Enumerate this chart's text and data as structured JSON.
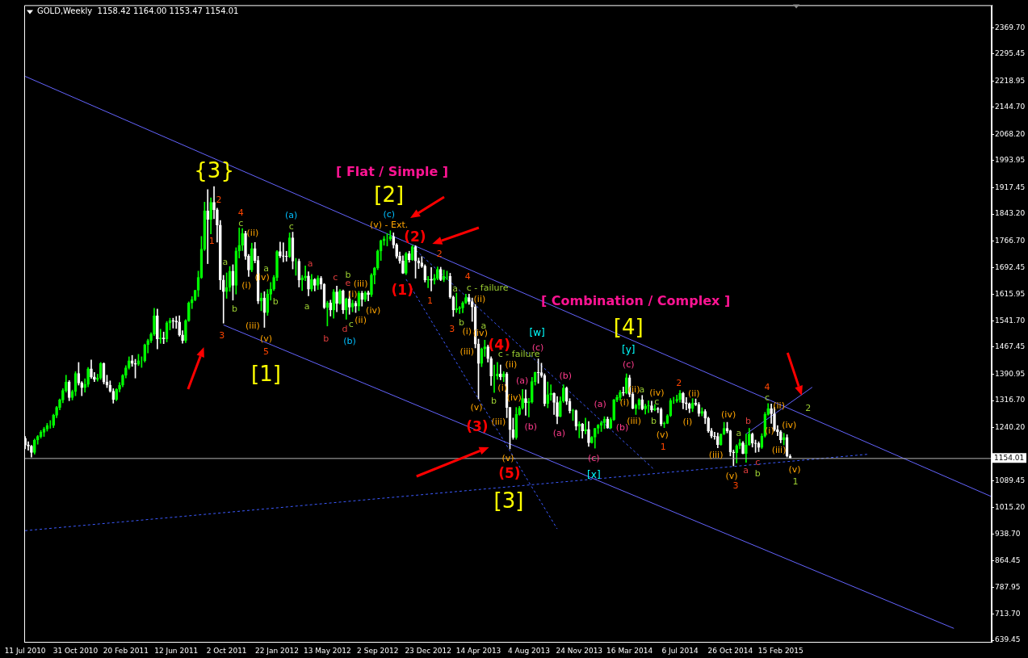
{
  "chart_data": {
    "type": "candlestick",
    "title": "GOLD,Weekly  1158.42 1164.00 1153.47 1154.01",
    "colors": [
      "#ffffff",
      "#ffffff",
      "#ffffff",
      "#00ff00",
      "#00ff00",
      "#00ff00",
      "#00ff00",
      "#00ff00",
      "#00ff00",
      "#00ff00",
      "#00ff00",
      "#00ff00",
      "#00ff00",
      "#00ff00",
      "#ffffff",
      "#00ff00",
      "#00ff00",
      "#ffffff",
      "#ffffff",
      "#00ff00",
      "#00ff00",
      "#ffffff",
      "#ffffff",
      "#00ff00",
      "#00ff00",
      "#ffffff",
      "#ffffff",
      "#ffffff",
      "#ffffff",
      "#00ff00",
      "#00ff00",
      "#00ff00",
      "#00ff00",
      "#00ff00",
      "#ffffff",
      "#ffffff",
      "#00ff00",
      "#00ff00",
      "#00ff00",
      "#00ff00",
      "#00ff00",
      "#00ff00",
      "#ffffff",
      "#00ff00",
      "#ffffff",
      "#00ff00",
      "#00ff00",
      "#ffffff",
      "#ffffff",
      "#ffffff",
      "#ffffff",
      "#00ff00",
      "#00ff00",
      "#00ff00",
      "#00ff00",
      "#00ff00",
      "#00ff00",
      "#00ff00",
      "#ffffff",
      "#00ff00",
      "#ffffff",
      "#ffffff",
      "#ffffff",
      "#ffffff",
      "#00ff00",
      "#00ff00",
      "#ffffff",
      "#00ff00",
      "#00ff00",
      "#00ff00",
      "#ffffff",
      "#ffffff",
      "#00ff00",
      "#ffffff",
      "#ffffff",
      "#00ff00",
      "#ffffff",
      "#00ff00",
      "#00ff00",
      "#00ff00",
      "#00ff00",
      "#ffffff",
      "#ffffff",
      "#ffffff",
      "#00ff00",
      "#ffffff",
      "#00ff00",
      "#ffffff",
      "#00ff00",
      "#00ff00",
      "#ffffff",
      "#00ff00",
      "#ffffff",
      "#00ff00",
      "#ffffff",
      "#ffffff",
      "#00ff00",
      "#ffffff",
      "#00ff00",
      "#ffffff",
      "#00ff00",
      "#ffffff",
      "#00ff00",
      "#ffffff",
      "#00ff00",
      "#ffffff",
      "#00ff00",
      "#ffffff",
      "#00ff00",
      "#ffffff",
      "#00ff00",
      "#00ff00",
      "#00ff00",
      "#00ff00",
      "#00ff00",
      "#00ff00",
      "#00ff00",
      "#ffffff",
      "#ffffff",
      "#ffffff",
      "#ffffff",
      "#00ff00",
      "#ffffff",
      "#00ff00",
      "#ffffff",
      "#ffffff",
      "#ffffff",
      "#ffffff",
      "#00ff00",
      "#ffffff",
      "#00ff00",
      "#00ff00",
      "#ffffff",
      "#00ff00",
      "#00ff00",
      "#ffffff",
      "#ffffff",
      "#00ff00",
      "#00ff00",
      "#00ff00",
      "#00ff00",
      "#ffffff",
      "#ffffff",
      "#ffffff",
      "#ffffff",
      "#00ff00",
      "#00ff00",
      "#ffffff",
      "#ffffff",
      "#00ff00",
      "#00ff00",
      "#ffffff",
      "#00ff00",
      "#ffffff",
      "#ffffff",
      "#ffffff",
      "#00ff00",
      "#00ff00",
      "#00ff00",
      "#ffffff",
      "#00ff00",
      "#00ff00",
      "#00ff00",
      "#ffffff",
      "#ffffff",
      "#ffffff",
      "#00ff00",
      "#00ff00",
      "#ffffff",
      "#ffffff",
      "#00ff00",
      "#00ff00",
      "#ffffff",
      "#ffffff",
      "#00ff00",
      "#ffffff",
      "#00ff00",
      "#ffffff",
      "#00ff00",
      "#ffffff",
      "#00ff00",
      "#00ff00",
      "#00ff00",
      "#00ff00",
      "#00ff00",
      "#ffffff",
      "#00ff00",
      "#00ff00",
      "#00ff00",
      "#00ff00",
      "#ffffff",
      "#00ff00",
      "#ffffff",
      "#ffffff",
      "#00ff00",
      "#00ff00",
      "#ffffff",
      "#00ff00",
      "#00ff00",
      "#ffffff",
      "#00ff00",
      "#ffffff",
      "#ffffff",
      "#00ff00",
      "#00ff00",
      "#00ff00",
      "#00ff00",
      "#00ff00",
      "#00ff00",
      "#ffffff",
      "#ffffff",
      "#ffffff",
      "#00ff00",
      "#ffffff",
      "#ffffff",
      "#00ff00",
      "#ffffff",
      "#ffffff",
      "#ffffff",
      "#ffffff",
      "#ffffff",
      "#00ff00",
      "#00ff00",
      "#ffffff",
      "#ffffff",
      "#ffffff",
      "#00ff00",
      "#00ff00",
      "#ffffff",
      "#00ff00",
      "#00ff00",
      "#ffffff",
      "#ffffff",
      "#ffffff",
      "#00ff00",
      "#00ff00",
      "#00ff00",
      "#ffffff",
      "#ffffff",
      "#ffffff",
      "#ffffff",
      "#00ff00",
      "#ffffff",
      "#ffffff"
    ],
    "x": [
      "2010-07-11",
      "2010-07-18",
      "2010-07-25",
      "2010-08-01",
      "2010-08-08",
      "2010-08-15",
      "2010-08-22",
      "2010-08-29",
      "2010-09-05",
      "2010-09-12",
      "2010-09-19",
      "2010-09-26",
      "2010-10-03",
      "2010-10-10",
      "2010-10-17",
      "2010-10-24",
      "2010-10-31",
      "2010-11-07",
      "2010-11-14",
      "2010-11-21",
      "2010-11-28",
      "2010-12-05",
      "2010-12-12",
      "2010-12-19",
      "2010-12-26",
      "2011-01-02",
      "2011-01-09",
      "2011-01-16",
      "2011-01-23",
      "2011-01-30",
      "2011-02-06",
      "2011-02-13",
      "2011-02-20",
      "2011-02-27",
      "2011-03-06",
      "2011-03-13",
      "2011-03-20",
      "2011-03-27",
      "2011-04-03",
      "2011-04-10",
      "2011-04-17",
      "2011-04-24",
      "2011-05-01",
      "2011-05-08",
      "2011-05-15",
      "2011-05-22",
      "2011-05-29",
      "2011-06-05",
      "2011-06-12",
      "2011-06-19",
      "2011-06-26",
      "2011-07-03",
      "2011-07-10",
      "2011-07-17",
      "2011-07-24",
      "2011-07-31",
      "2011-08-07",
      "2011-08-14",
      "2011-08-21",
      "2011-08-28",
      "2011-09-04",
      "2011-09-11",
      "2011-09-18",
      "2011-09-25",
      "2011-10-02",
      "2011-10-09",
      "2011-10-16",
      "2011-10-23",
      "2011-10-30",
      "2011-11-06",
      "2011-11-13",
      "2011-11-20",
      "2011-11-27",
      "2011-12-04",
      "2011-12-11",
      "2011-12-18",
      "2011-12-25",
      "2012-01-01",
      "2012-01-08",
      "2012-01-15",
      "2012-01-22",
      "2012-01-29",
      "2012-02-05",
      "2012-02-12",
      "2012-02-19",
      "2012-02-26",
      "2012-03-04",
      "2012-03-11",
      "2012-03-18",
      "2012-03-25",
      "2012-04-01",
      "2012-04-08",
      "2012-04-15",
      "2012-04-22",
      "2012-04-29",
      "2012-05-06",
      "2012-05-13",
      "2012-05-20",
      "2012-05-27",
      "2012-06-03",
      "2012-06-10",
      "2012-06-17",
      "2012-06-24",
      "2012-07-01",
      "2012-07-08",
      "2012-07-15",
      "2012-07-22",
      "2012-07-29",
      "2012-08-05",
      "2012-08-12",
      "2012-08-19",
      "2012-08-26",
      "2012-09-02",
      "2012-09-09",
      "2012-09-16",
      "2012-09-23",
      "2012-09-30",
      "2012-10-07",
      "2012-10-14",
      "2012-10-21",
      "2012-10-28",
      "2012-11-04",
      "2012-11-11",
      "2012-11-18",
      "2012-11-25",
      "2012-12-02",
      "2012-12-09",
      "2012-12-16",
      "2012-12-23",
      "2012-12-30",
      "2013-01-06",
      "2013-01-13",
      "2013-01-20",
      "2013-01-27",
      "2013-02-03",
      "2013-02-10",
      "2013-02-17",
      "2013-02-24",
      "2013-03-03",
      "2013-03-10",
      "2013-03-17",
      "2013-03-24",
      "2013-03-31",
      "2013-04-07",
      "2013-04-14",
      "2013-04-21",
      "2013-04-28",
      "2013-05-05",
      "2013-05-12",
      "2013-05-19",
      "2013-05-26",
      "2013-06-02",
      "2013-06-09",
      "2013-06-16",
      "2013-06-23",
      "2013-06-30",
      "2013-07-07",
      "2013-07-14",
      "2013-07-21",
      "2013-07-28",
      "2013-08-04",
      "2013-08-11",
      "2013-08-18",
      "2013-08-25",
      "2013-09-01",
      "2013-09-08",
      "2013-09-15",
      "2013-09-22",
      "2013-09-29",
      "2013-10-06",
      "2013-10-13",
      "2013-10-20",
      "2013-10-27",
      "2013-11-03",
      "2013-11-10",
      "2013-11-17",
      "2013-11-24",
      "2013-12-01",
      "2013-12-08",
      "2013-12-15",
      "2013-12-22",
      "2013-12-29",
      "2014-01-05",
      "2014-01-12",
      "2014-01-19",
      "2014-01-26",
      "2014-02-02",
      "2014-02-09",
      "2014-02-16",
      "2014-02-23",
      "2014-03-02",
      "2014-03-09",
      "2014-03-16",
      "2014-03-23",
      "2014-03-30",
      "2014-04-06",
      "2014-04-13",
      "2014-04-20",
      "2014-04-27",
      "2014-05-04",
      "2014-05-11",
      "2014-05-18",
      "2014-05-25",
      "2014-06-01",
      "2014-06-08",
      "2014-06-15",
      "2014-06-22",
      "2014-06-29",
      "2014-07-06",
      "2014-07-13",
      "2014-07-20",
      "2014-07-27",
      "2014-08-03",
      "2014-08-10",
      "2014-08-17",
      "2014-08-24",
      "2014-08-31",
      "2014-09-07",
      "2014-09-14",
      "2014-09-21",
      "2014-09-28",
      "2014-10-05",
      "2014-10-12",
      "2014-10-19",
      "2014-10-26",
      "2014-11-02",
      "2014-11-09",
      "2014-11-16",
      "2014-11-23",
      "2014-11-30",
      "2014-12-07",
      "2014-12-14",
      "2014-12-21",
      "2014-12-28",
      "2015-01-04",
      "2015-01-11",
      "2015-01-18",
      "2015-01-25",
      "2015-02-01",
      "2015-02-08",
      "2015-02-15",
      "2015-02-22",
      "2015-03-01",
      "2015-03-08"
    ],
    "ohlc": [
      [
        1210,
        1215,
        1180,
        1191
      ],
      [
        1191,
        1200,
        1176,
        1188
      ],
      [
        1188,
        1190,
        1157,
        1170
      ],
      [
        1170,
        1208,
        1165,
        1205
      ],
      [
        1205,
        1218,
        1193,
        1215
      ],
      [
        1215,
        1232,
        1210,
        1227
      ],
      [
        1227,
        1241,
        1215,
        1236
      ],
      [
        1236,
        1252,
        1230,
        1246
      ],
      [
        1246,
        1260,
        1238,
        1246
      ],
      [
        1246,
        1278,
        1240,
        1275
      ],
      [
        1275,
        1300,
        1268,
        1297
      ],
      [
        1297,
        1321,
        1290,
        1318
      ],
      [
        1318,
        1350,
        1310,
        1345
      ],
      [
        1345,
        1388,
        1340,
        1369
      ],
      [
        1369,
        1373,
        1316,
        1325
      ],
      [
        1325,
        1346,
        1318,
        1342
      ],
      [
        1342,
        1398,
        1330,
        1393
      ],
      [
        1393,
        1424,
        1360,
        1366
      ],
      [
        1366,
        1370,
        1330,
        1353
      ],
      [
        1353,
        1378,
        1340,
        1362
      ],
      [
        1362,
        1410,
        1355,
        1406
      ],
      [
        1406,
        1431,
        1379,
        1383
      ],
      [
        1383,
        1396,
        1370,
        1376
      ],
      [
        1376,
        1391,
        1371,
        1380
      ],
      [
        1380,
        1424,
        1376,
        1421
      ],
      [
        1421,
        1423,
        1363,
        1369
      ],
      [
        1369,
        1388,
        1353,
        1360
      ],
      [
        1360,
        1372,
        1340,
        1343
      ],
      [
        1343,
        1350,
        1309,
        1319
      ],
      [
        1319,
        1350,
        1316,
        1348
      ],
      [
        1348,
        1367,
        1341,
        1360
      ],
      [
        1360,
        1390,
        1355,
        1388
      ],
      [
        1388,
        1415,
        1380,
        1409
      ],
      [
        1409,
        1440,
        1405,
        1429
      ],
      [
        1429,
        1444,
        1413,
        1421
      ],
      [
        1421,
        1433,
        1380,
        1419
      ],
      [
        1419,
        1447,
        1415,
        1429
      ],
      [
        1429,
        1440,
        1410,
        1429
      ],
      [
        1429,
        1476,
        1425,
        1474
      ],
      [
        1474,
        1490,
        1451,
        1486
      ],
      [
        1486,
        1508,
        1480,
        1504
      ],
      [
        1504,
        1577,
        1500,
        1556
      ],
      [
        1556,
        1575,
        1462,
        1491
      ],
      [
        1491,
        1518,
        1478,
        1493
      ],
      [
        1493,
        1510,
        1477,
        1491
      ],
      [
        1491,
        1540,
        1482,
        1536
      ],
      [
        1536,
        1549,
        1516,
        1542
      ],
      [
        1542,
        1549,
        1521,
        1541
      ],
      [
        1541,
        1554,
        1520,
        1538
      ],
      [
        1538,
        1556,
        1498,
        1502
      ],
      [
        1502,
        1514,
        1478,
        1486
      ],
      [
        1486,
        1545,
        1480,
        1542
      ],
      [
        1542,
        1595,
        1540,
        1592
      ],
      [
        1592,
        1610,
        1576,
        1601
      ],
      [
        1601,
        1628,
        1598,
        1628
      ],
      [
        1628,
        1682,
        1610,
        1664
      ],
      [
        1664,
        1780,
        1661,
        1744
      ],
      [
        1744,
        1877,
        1740,
        1852
      ],
      [
        1852,
        1912,
        1703,
        1828
      ],
      [
        1828,
        1889,
        1787,
        1876
      ],
      [
        1876,
        1921,
        1830,
        1855
      ],
      [
        1855,
        1860,
        1764,
        1812
      ],
      [
        1812,
        1825,
        1630,
        1657
      ],
      [
        1657,
        1670,
        1535,
        1624
      ],
      [
        1624,
        1677,
        1605,
        1636
      ],
      [
        1636,
        1695,
        1625,
        1682
      ],
      [
        1682,
        1700,
        1600,
        1642
      ],
      [
        1642,
        1748,
        1617,
        1739
      ],
      [
        1739,
        1804,
        1719,
        1755
      ],
      [
        1755,
        1802,
        1740,
        1788
      ],
      [
        1788,
        1795,
        1715,
        1724
      ],
      [
        1724,
        1729,
        1667,
        1685
      ],
      [
        1685,
        1761,
        1680,
        1746
      ],
      [
        1746,
        1763,
        1705,
        1712
      ],
      [
        1712,
        1724,
        1590,
        1598
      ],
      [
        1598,
        1620,
        1570,
        1606
      ],
      [
        1606,
        1624,
        1523,
        1565
      ],
      [
        1565,
        1630,
        1557,
        1617
      ],
      [
        1617,
        1650,
        1600,
        1631
      ],
      [
        1631,
        1670,
        1627,
        1664
      ],
      [
        1664,
        1740,
        1655,
        1737
      ],
      [
        1737,
        1764,
        1720,
        1725
      ],
      [
        1725,
        1762,
        1708,
        1724
      ],
      [
        1724,
        1738,
        1710,
        1723
      ],
      [
        1723,
        1790,
        1720,
        1776
      ],
      [
        1776,
        1792,
        1688,
        1710
      ],
      [
        1710,
        1718,
        1670,
        1710
      ],
      [
        1710,
        1716,
        1637,
        1657
      ],
      [
        1657,
        1670,
        1627,
        1663
      ],
      [
        1663,
        1697,
        1655,
        1668
      ],
      [
        1668,
        1680,
        1612,
        1631
      ],
      [
        1631,
        1673,
        1625,
        1658
      ],
      [
        1658,
        1661,
        1626,
        1642
      ],
      [
        1642,
        1669,
        1630,
        1662
      ],
      [
        1662,
        1667,
        1631,
        1645
      ],
      [
        1645,
        1647,
        1576,
        1579
      ],
      [
        1579,
        1597,
        1527,
        1592
      ],
      [
        1592,
        1600,
        1555,
        1572
      ],
      [
        1572,
        1630,
        1549,
        1623
      ],
      [
        1623,
        1640,
        1567,
        1591
      ],
      [
        1591,
        1630,
        1588,
        1626
      ],
      [
        1626,
        1629,
        1562,
        1572
      ],
      [
        1572,
        1606,
        1546,
        1604
      ],
      [
        1604,
        1625,
        1560,
        1580
      ],
      [
        1580,
        1600,
        1567,
        1591
      ],
      [
        1591,
        1597,
        1565,
        1583
      ],
      [
        1583,
        1625,
        1570,
        1620
      ],
      [
        1620,
        1625,
        1583,
        1602
      ],
      [
        1602,
        1625,
        1596,
        1621
      ],
      [
        1621,
        1626,
        1598,
        1616
      ],
      [
        1616,
        1675,
        1610,
        1671
      ],
      [
        1671,
        1693,
        1646,
        1691
      ],
      [
        1691,
        1742,
        1686,
        1739
      ],
      [
        1739,
        1770,
        1712,
        1768
      ],
      [
        1768,
        1780,
        1755,
        1773
      ],
      [
        1773,
        1788,
        1753,
        1773
      ],
      [
        1773,
        1796,
        1768,
        1780
      ],
      [
        1780,
        1790,
        1747,
        1756
      ],
      [
        1756,
        1760,
        1718,
        1724
      ],
      [
        1724,
        1736,
        1704,
        1711
      ],
      [
        1711,
        1725,
        1675,
        1676
      ],
      [
        1676,
        1735,
        1672,
        1731
      ],
      [
        1731,
        1738,
        1707,
        1714
      ],
      [
        1714,
        1755,
        1712,
        1751
      ],
      [
        1751,
        1754,
        1662,
        1711
      ],
      [
        1711,
        1719,
        1689,
        1705
      ],
      [
        1705,
        1723,
        1692,
        1696
      ],
      [
        1696,
        1700,
        1651,
        1657
      ],
      [
        1657,
        1667,
        1635,
        1659
      ],
      [
        1659,
        1692,
        1626,
        1656
      ],
      [
        1656,
        1673,
        1645,
        1662
      ],
      [
        1662,
        1694,
        1657,
        1687
      ],
      [
        1687,
        1693,
        1655,
        1658
      ],
      [
        1658,
        1685,
        1652,
        1667
      ],
      [
        1667,
        1682,
        1658,
        1667
      ],
      [
        1667,
        1676,
        1605,
        1609
      ],
      [
        1609,
        1612,
        1554,
        1572
      ],
      [
        1572,
        1620,
        1565,
        1576
      ],
      [
        1576,
        1582,
        1562,
        1578
      ],
      [
        1578,
        1596,
        1564,
        1592
      ],
      [
        1592,
        1617,
        1590,
        1607
      ],
      [
        1607,
        1617,
        1588,
        1596
      ],
      [
        1596,
        1606,
        1540,
        1581
      ],
      [
        1581,
        1588,
        1465,
        1476
      ],
      [
        1476,
        1490,
        1321,
        1421
      ],
      [
        1421,
        1465,
        1412,
        1462
      ],
      [
        1462,
        1487,
        1441,
        1468
      ],
      [
        1468,
        1473,
        1425,
        1435
      ],
      [
        1435,
        1440,
        1359,
        1386
      ],
      [
        1386,
        1417,
        1339,
        1386
      ],
      [
        1386,
        1424,
        1376,
        1392
      ],
      [
        1392,
        1417,
        1375,
        1383
      ],
      [
        1383,
        1398,
        1370,
        1392
      ],
      [
        1392,
        1396,
        1268,
        1297
      ],
      [
        1297,
        1297,
        1180,
        1234
      ],
      [
        1234,
        1267,
        1207,
        1212
      ],
      [
        1212,
        1297,
        1207,
        1277
      ],
      [
        1277,
        1300,
        1275,
        1295
      ],
      [
        1295,
        1348,
        1292,
        1322
      ],
      [
        1322,
        1347,
        1275,
        1310
      ],
      [
        1310,
        1323,
        1270,
        1313
      ],
      [
        1313,
        1382,
        1309,
        1370
      ],
      [
        1370,
        1397,
        1360,
        1396
      ],
      [
        1396,
        1434,
        1365,
        1395
      ],
      [
        1395,
        1422,
        1382,
        1387
      ],
      [
        1387,
        1392,
        1301,
        1308
      ],
      [
        1308,
        1369,
        1296,
        1333
      ],
      [
        1333,
        1361,
        1317,
        1337
      ],
      [
        1337,
        1338,
        1277,
        1311
      ],
      [
        1311,
        1328,
        1251,
        1272
      ],
      [
        1272,
        1327,
        1270,
        1315
      ],
      [
        1315,
        1361,
        1311,
        1352
      ],
      [
        1352,
        1355,
        1305,
        1314
      ],
      [
        1314,
        1322,
        1281,
        1287
      ],
      [
        1287,
        1292,
        1260,
        1288
      ],
      [
        1288,
        1290,
        1233,
        1244
      ],
      [
        1244,
        1257,
        1211,
        1250
      ],
      [
        1250,
        1252,
        1210,
        1231
      ],
      [
        1231,
        1267,
        1222,
        1235
      ],
      [
        1235,
        1257,
        1187,
        1197
      ],
      [
        1197,
        1215,
        1196,
        1213
      ],
      [
        1213,
        1238,
        1182,
        1238
      ],
      [
        1238,
        1249,
        1223,
        1247
      ],
      [
        1247,
        1258,
        1229,
        1254
      ],
      [
        1254,
        1271,
        1237,
        1264
      ],
      [
        1264,
        1270,
        1238,
        1239
      ],
      [
        1239,
        1268,
        1237,
        1263
      ],
      [
        1263,
        1320,
        1260,
        1318
      ],
      [
        1318,
        1332,
        1313,
        1325
      ],
      [
        1325,
        1345,
        1317,
        1339
      ],
      [
        1339,
        1355,
        1330,
        1338
      ],
      [
        1338,
        1392,
        1335,
        1381
      ],
      [
        1381,
        1388,
        1327,
        1334
      ],
      [
        1334,
        1340,
        1293,
        1294
      ],
      [
        1294,
        1307,
        1277,
        1303
      ],
      [
        1303,
        1322,
        1292,
        1318
      ],
      [
        1318,
        1331,
        1290,
        1293
      ],
      [
        1293,
        1306,
        1278,
        1301
      ],
      [
        1301,
        1316,
        1282,
        1302
      ],
      [
        1302,
        1315,
        1284,
        1290
      ],
      [
        1290,
        1305,
        1287,
        1293
      ],
      [
        1293,
        1297,
        1282,
        1292
      ],
      [
        1292,
        1296,
        1245,
        1250
      ],
      [
        1250,
        1256,
        1240,
        1252
      ],
      [
        1252,
        1277,
        1251,
        1274
      ],
      [
        1274,
        1322,
        1271,
        1316
      ],
      [
        1316,
        1326,
        1308,
        1316
      ],
      [
        1316,
        1332,
        1311,
        1320
      ],
      [
        1320,
        1345,
        1312,
        1337
      ],
      [
        1337,
        1340,
        1293,
        1310
      ],
      [
        1310,
        1325,
        1290,
        1307
      ],
      [
        1307,
        1310,
        1282,
        1294
      ],
      [
        1294,
        1322,
        1285,
        1309
      ],
      [
        1309,
        1321,
        1302,
        1305
      ],
      [
        1305,
        1311,
        1272,
        1280
      ],
      [
        1280,
        1296,
        1273,
        1286
      ],
      [
        1286,
        1291,
        1251,
        1267
      ],
      [
        1267,
        1270,
        1226,
        1231
      ],
      [
        1231,
        1238,
        1211,
        1216
      ],
      [
        1216,
        1227,
        1207,
        1215
      ],
      [
        1215,
        1225,
        1183,
        1192
      ],
      [
        1192,
        1222,
        1190,
        1222
      ],
      [
        1222,
        1255,
        1220,
        1238
      ],
      [
        1238,
        1255,
        1225,
        1231
      ],
      [
        1231,
        1233,
        1160,
        1171
      ],
      [
        1171,
        1177,
        1132,
        1169
      ],
      [
        1169,
        1192,
        1140,
        1189
      ],
      [
        1189,
        1207,
        1180,
        1197
      ],
      [
        1197,
        1201,
        1166,
        1167
      ],
      [
        1167,
        1222,
        1142,
        1191
      ],
      [
        1191,
        1238,
        1190,
        1222
      ],
      [
        1222,
        1225,
        1185,
        1196
      ],
      [
        1196,
        1205,
        1170,
        1195
      ],
      [
        1195,
        1200,
        1172,
        1184
      ],
      [
        1184,
        1223,
        1181,
        1216
      ],
      [
        1216,
        1283,
        1213,
        1277
      ],
      [
        1277,
        1308,
        1275,
        1294
      ],
      [
        1294,
        1307,
        1252,
        1279
      ],
      [
        1279,
        1297,
        1230,
        1234
      ],
      [
        1234,
        1246,
        1217,
        1228
      ],
      [
        1228,
        1232,
        1197,
        1205
      ],
      [
        1205,
        1224,
        1191,
        1212
      ],
      [
        1212,
        1220,
        1157,
        1160
      ],
      [
        1158.42,
        1164,
        1153.47,
        1154.01
      ]
    ],
    "series": [
      {
        "type": "line",
        "x": [
          "2010-07-11",
          "2016-05-29"
        ],
        "values": [
          2232,
          1045
        ],
        "color": "#6464ff",
        "line_style": "solid"
      },
      {
        "type": "line",
        "x": [
          "2011-09-25",
          "2016-03-06"
        ],
        "values": [
          1530,
          673
        ],
        "color": "#6464ff",
        "line_style": "solid"
      },
      {
        "type": "line",
        "x": [
          "2010-07-11",
          "2015-08-30"
        ],
        "values": [
          949,
          1165
        ],
        "color": "#3c5aff",
        "line_style": "dashed"
      },
      {
        "type": "line",
        "x": [
          "2012-11-04",
          "2013-10-06"
        ],
        "values": [
          1659,
          954
        ],
        "color": "#3c5aff",
        "line_style": "dashed"
      },
      {
        "type": "line",
        "x": [
          "2012-11-18",
          "2014-05-11"
        ],
        "values": [
          1750,
          1120
        ],
        "color": "#3c5aff",
        "line_style": "dashed"
      },
      {
        "type": "line",
        "x": [
          "2014-11-30",
          "2015-04-26"
        ],
        "values": [
          1222,
          1354
        ],
        "color": "#6464ff",
        "line_style": "solid"
      }
    ],
    "xlim": [
      "2010-07-09",
      "2016-05-29"
    ],
    "xticks": [
      {
        "value": "2010-07-11",
        "label": "11 Jul 2010"
      },
      {
        "value": "2010-10-31",
        "label": "31 Oct 2010"
      },
      {
        "value": "2011-02-20",
        "label": "20 Feb 2011"
      },
      {
        "value": "2011-06-12",
        "label": "12 Jun 2011"
      },
      {
        "value": "2011-10-02",
        "label": "2 Oct 2011"
      },
      {
        "value": "2012-01-22",
        "label": "22 Jan 2012"
      },
      {
        "value": "2012-05-13",
        "label": "13 May 2012"
      },
      {
        "value": "2012-09-02",
        "label": "2 Sep 2012"
      },
      {
        "value": "2012-12-23",
        "label": "23 Dec 2012"
      },
      {
        "value": "2013-04-14",
        "label": "14 Apr 2013"
      },
      {
        "value": "2013-08-04",
        "label": "4 Aug 2013"
      },
      {
        "value": "2013-11-24",
        "label": "24 Nov 2013"
      },
      {
        "value": "2014-03-16",
        "label": "16 Mar 2014"
      },
      {
        "value": "2014-07-06",
        "label": "6 Jul 2014"
      },
      {
        "value": "2014-10-26",
        "label": "26 Oct 2014"
      },
      {
        "value": "2015-02-15",
        "label": "15 Feb 2015"
      }
    ],
    "ylim": [
      635,
      2433
    ],
    "yticks": [
      {
        "value": 2369.7,
        "label": "2369.70"
      },
      2295.45,
      2218.95,
      {
        "value": 2144.7,
        "label": "2144.70"
      },
      {
        "value": 2068.2,
        "label": "2068.20"
      },
      1993.95,
      1917.45,
      {
        "value": 1843.2,
        "label": "1843.20"
      },
      {
        "value": 1766.7,
        "label": "1766.70"
      },
      1692.45,
      1615.95,
      {
        "value": 1541.7,
        "label": "1541.70"
      },
      1467.45,
      1390.95,
      {
        "value": 1316.7,
        "label": "1316.70"
      },
      {
        "value": 1240.2,
        "label": "1240.20"
      },
      {
        "value": 1165.95,
        "label": null
      },
      1089.45,
      {
        "value": 1015.2,
        "label": "1015.20"
      },
      {
        "value": 938.7,
        "label": "938.70"
      },
      864.45,
      787.95,
      {
        "value": 713.7,
        "label": "713.70"
      },
      639.45
    ],
    "ref_lines": [
      {
        "axis": "y",
        "value": 1154.01,
        "label": "1154.01",
        "color": "#b4b4b4"
      }
    ],
    "annotations": [
      "{3}",
      "2",
      "1",
      "3",
      "4",
      "c",
      "(ii)",
      "a",
      "(i)",
      "(iv)",
      "a",
      "b",
      "b",
      "(iii)",
      "(v)",
      "5",
      "[1]",
      "(a)",
      "c",
      "a",
      "a",
      "c",
      "b",
      "b",
      "e",
      "d",
      "c",
      "(b)",
      "(i)",
      "(iii)",
      "(ii)",
      "(iv)",
      "[ Flat / Simple ]",
      "[2]",
      "(c)",
      "(v) - Ext.",
      "(2)",
      "(1)",
      "2",
      "1",
      "4",
      "a",
      "c - failure",
      "3",
      "b",
      "(i)",
      "(ii)",
      "a",
      "(iv)",
      "(iii)",
      "(4)",
      "c - failure",
      "(ii)",
      "(i)",
      "b",
      "(v)",
      "(iv)",
      "(iii)",
      "(3)",
      "(v)",
      "(5)",
      "[3]",
      "(a)",
      "(b)",
      "[w]",
      "(c)",
      "(b)",
      "(a)",
      "(a)",
      "(c)",
      "[x]",
      "(b)",
      "(i)",
      "(iii)",
      "[ Combination / Complex ]",
      "[4]",
      "[y]",
      "(c)",
      "(ii)",
      "a",
      "(iv)",
      "c",
      "b",
      "(v)",
      "1",
      "2",
      "(ii)",
      "(i)",
      "(iv)",
      "(iii)",
      "(v)",
      "3",
      "a",
      "b",
      "a",
      "c",
      "b",
      "4",
      "c",
      "(ii)",
      "(i)",
      "(iv)",
      "(iii)",
      "(v)",
      "1",
      "2"
    ]
  }
}
